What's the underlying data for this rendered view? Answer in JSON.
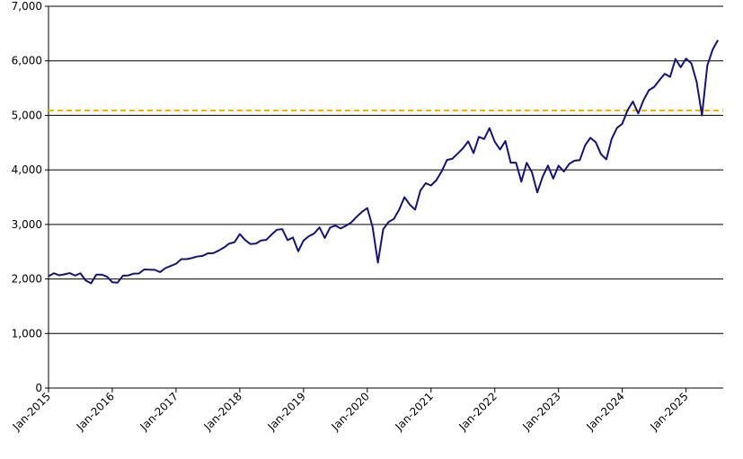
{
  "chart_data": {
    "type": "line",
    "x": [
      "2015-01",
      "2015-02",
      "2015-03",
      "2015-04",
      "2015-05",
      "2015-06",
      "2015-07",
      "2015-08",
      "2015-09",
      "2015-10",
      "2015-11",
      "2015-12",
      "2016-01",
      "2016-02",
      "2016-03",
      "2016-04",
      "2016-05",
      "2016-06",
      "2016-07",
      "2016-08",
      "2016-09",
      "2016-10",
      "2016-11",
      "2016-12",
      "2017-01",
      "2017-02",
      "2017-03",
      "2017-04",
      "2017-05",
      "2017-06",
      "2017-07",
      "2017-08",
      "2017-09",
      "2017-10",
      "2017-11",
      "2017-12",
      "2018-01",
      "2018-02",
      "2018-03",
      "2018-04",
      "2018-05",
      "2018-06",
      "2018-07",
      "2018-08",
      "2018-09",
      "2018-10",
      "2018-11",
      "2018-12",
      "2019-01",
      "2019-02",
      "2019-03",
      "2019-04",
      "2019-05",
      "2019-06",
      "2019-07",
      "2019-08",
      "2019-09",
      "2019-10",
      "2019-11",
      "2019-12",
      "2020-01",
      "2020-02",
      "2020-03",
      "2020-04",
      "2020-05",
      "2020-06",
      "2020-07",
      "2020-08",
      "2020-09",
      "2020-10",
      "2020-11",
      "2020-12",
      "2021-01",
      "2021-02",
      "2021-03",
      "2021-04",
      "2021-05",
      "2021-06",
      "2021-07",
      "2021-08",
      "2021-09",
      "2021-10",
      "2021-11",
      "2021-12",
      "2022-01",
      "2022-02",
      "2022-03",
      "2022-04",
      "2022-05",
      "2022-06",
      "2022-07",
      "2022-08",
      "2022-09",
      "2022-10",
      "2022-11",
      "2022-12",
      "2023-01",
      "2023-02",
      "2023-03",
      "2023-04",
      "2023-05",
      "2023-06",
      "2023-07",
      "2023-08",
      "2023-09",
      "2023-10",
      "2023-11",
      "2023-12",
      "2024-01",
      "2024-02",
      "2024-03",
      "2024-04",
      "2024-05",
      "2024-06",
      "2024-07",
      "2024-08",
      "2024-09",
      "2024-10",
      "2024-11",
      "2024-12",
      "2025-01",
      "2025-02",
      "2025-03",
      "2025-04",
      "2025-05",
      "2025-06",
      "2025-07"
    ],
    "series": [
      {
        "color": "#141478",
        "values": [
          2050,
          2105,
          2068,
          2086,
          2107,
          2063,
          2104,
          1972,
          1920,
          2079,
          2080,
          2044,
          1940,
          1932,
          2060,
          2065,
          2097,
          2099,
          2174,
          2171,
          2168,
          2126,
          2199,
          2239,
          2279,
          2364,
          2363,
          2384,
          2412,
          2423,
          2470,
          2472,
          2519,
          2575,
          2648,
          2674,
          2824,
          2714,
          2641,
          2648,
          2705,
          2718,
          2816,
          2902,
          2914,
          2712,
          2760,
          2507,
          2704,
          2784,
          2834,
          2946,
          2752,
          2942,
          2980,
          2926,
          2977,
          3038,
          3141,
          3231,
          3300,
          2954,
          2300,
          2912,
          3044,
          3100,
          3271,
          3500,
          3363,
          3270,
          3622,
          3756,
          3714,
          3811,
          3973,
          4181,
          4204,
          4298,
          4395,
          4523,
          4308,
          4605,
          4567,
          4766,
          4516,
          4374,
          4530,
          4132,
          4132,
          3785,
          4130,
          3955,
          3586,
          3872,
          4080,
          3840,
          4077,
          3970,
          4109,
          4169,
          4180,
          4450,
          4589,
          4508,
          4288,
          4194,
          4568,
          4770,
          4846,
          5096,
          5254,
          5036,
          5278,
          5460,
          5522,
          5648,
          5762,
          5705,
          6032,
          5882,
          6041,
          5955,
          5612,
          5000,
          5912,
          6205,
          6380
        ]
      }
    ],
    "reference_lines": [
      {
        "value": 5090,
        "color": "#f0b400"
      }
    ],
    "xlim": [
      "2015-01",
      "2025-08"
    ],
    "xticks": [
      {
        "value": "2015-01",
        "label": "Jan-2015"
      },
      {
        "value": "2016-01",
        "label": "Jan-2016"
      },
      {
        "value": "2017-01",
        "label": "Jan-2017"
      },
      {
        "value": "2018-01",
        "label": "Jan-2018"
      },
      {
        "value": "2019-01",
        "label": "Jan-2019"
      },
      {
        "value": "2020-01",
        "label": "Jan-2020"
      },
      {
        "value": "2021-01",
        "label": "Jan-2021"
      },
      {
        "value": "2022-01",
        "label": "Jan-2022"
      },
      {
        "value": "2023-01",
        "label": "Jan-2023"
      },
      {
        "value": "2024-01",
        "label": "Jan-2024"
      },
      {
        "value": "2025-01",
        "label": "Jan-2025"
      }
    ],
    "ylim": [
      0,
      7000
    ],
    "yticks": [
      0,
      {
        "value": 1000,
        "label": "1,000"
      },
      {
        "value": 2000,
        "label": "2,000"
      },
      {
        "value": 3000,
        "label": "3,000"
      },
      {
        "value": 4000,
        "label": "4,000"
      },
      {
        "value": 5000,
        "label": "5,000"
      },
      {
        "value": 6000,
        "label": "6,000"
      },
      {
        "value": 7000,
        "label": "7,000"
      }
    ],
    "grid": true
  }
}
